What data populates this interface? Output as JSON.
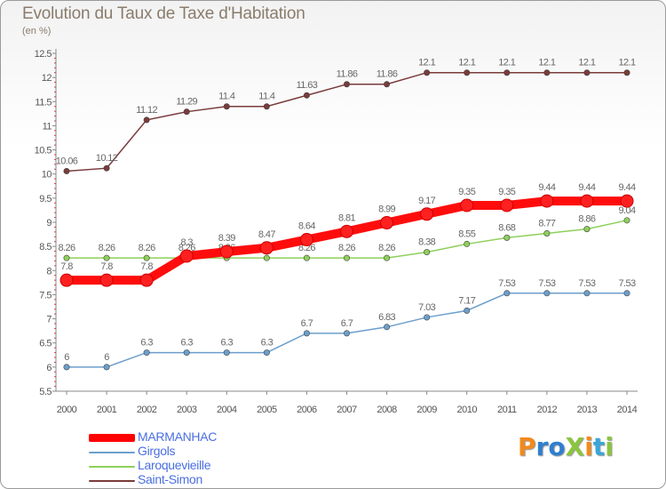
{
  "title": "Evolution du Taux de Taxe d'Habitation",
  "unit": "(en %)",
  "logo": {
    "text": "ProXiti",
    "colors": [
      "#f28a1c",
      "#2f7fd0",
      "#2f7fd0",
      "#8bc53f",
      "#f28a1c",
      "#3aa6d8",
      "#8bc53f"
    ]
  },
  "chart_data": {
    "type": "line",
    "x": [
      2000,
      2001,
      2002,
      2003,
      2004,
      2005,
      2006,
      2007,
      2008,
      2009,
      2010,
      2011,
      2012,
      2013,
      2014
    ],
    "ylim": [
      5.5,
      12.5
    ],
    "yticks": [
      5.5,
      6,
      6.5,
      7,
      7.5,
      8,
      8.5,
      9,
      9.5,
      10,
      10.5,
      11,
      11.5,
      12,
      12.5
    ],
    "ytick_labels": [
      "5.5",
      "6",
      "6.5",
      "7",
      "7.5",
      "8",
      "8.5",
      "9",
      "9.5",
      "10",
      "10.5",
      "11",
      "11.5",
      "12",
      "12.5"
    ],
    "grid": false,
    "legend_position": "bottom-left",
    "series": [
      {
        "name": "MARMANHAC",
        "color": "#ff0000",
        "legend_text_color": "#4a6fe0",
        "width": "thick",
        "values": [
          7.8,
          7.8,
          7.8,
          8.3,
          8.39,
          8.47,
          8.64,
          8.81,
          8.99,
          9.17,
          9.35,
          9.35,
          9.44,
          9.44,
          9.44
        ],
        "labels": [
          "7.8",
          "7.8",
          "7.8",
          "8.3",
          "8.39",
          "8.47",
          "8.64",
          "8.81",
          "8.99",
          "9.17",
          "9.35",
          "9.35",
          "9.44",
          "9.44",
          "9.44"
        ]
      },
      {
        "name": "Girgols",
        "color": "#6c9fcc",
        "legend_text_color": "#4a6fe0",
        "width": "thin",
        "values": [
          6,
          6,
          6.3,
          6.3,
          6.3,
          6.3,
          6.7,
          6.7,
          6.83,
          7.03,
          7.17,
          7.53,
          7.53,
          7.53,
          7.53
        ],
        "labels": [
          "6",
          "6",
          "6.3",
          "6.3",
          "6.3",
          "6.3",
          "6.7",
          "6.7",
          "6.83",
          "7.03",
          "7.17",
          "7.53",
          "7.53",
          "7.53",
          "7.53"
        ]
      },
      {
        "name": "Laroquevieille",
        "color": "#8ed05a",
        "legend_text_color": "#4a6fe0",
        "width": "thin",
        "values": [
          8.26,
          8.26,
          8.26,
          8.26,
          8.26,
          8.26,
          8.26,
          8.26,
          8.26,
          8.38,
          8.55,
          8.68,
          8.77,
          8.86,
          9.04
        ],
        "labels": [
          "8.26",
          "8.26",
          "8.26",
          "8.26",
          "8.26",
          "8.26",
          "8.26",
          "8.26",
          "8.26",
          "8.38",
          "8.55",
          "8.68",
          "8.77",
          "8.86",
          "9.04"
        ]
      },
      {
        "name": "Saint-Simon",
        "color": "#7a3b3b",
        "legend_text_color": "#4a6fe0",
        "width": "thin",
        "values": [
          10.06,
          10.12,
          11.12,
          11.29,
          11.4,
          11.4,
          11.63,
          11.86,
          11.86,
          12.1,
          12.1,
          12.1,
          12.1,
          12.1,
          12.1
        ],
        "labels": [
          "10.06",
          "10.12",
          "11.12",
          "11.29",
          "11.4",
          "11.4",
          "11.63",
          "11.86",
          "11.86",
          "12.1",
          "12.1",
          "12.1",
          "12.1",
          "12.1",
          "12.1"
        ]
      }
    ]
  }
}
